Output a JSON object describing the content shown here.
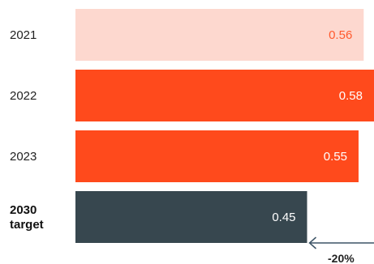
{
  "chart_data": {
    "type": "bar",
    "orientation": "horizontal",
    "categories": [
      [
        "2021"
      ],
      [
        "2022"
      ],
      [
        "2023"
      ],
      [
        "2030",
        "target"
      ]
    ],
    "values": [
      0.56,
      0.58,
      0.55,
      0.45
    ],
    "value_labels": [
      "0.56",
      "0.58",
      "0.55",
      "0.45"
    ],
    "bar_colors": [
      "#fdd8cf",
      "#ff4a1c",
      "#ff4a1c",
      "#37474f"
    ],
    "value_label_colors": [
      "#ff5a2e",
      "#ffffff",
      "#ffffff",
      "#ffffff"
    ],
    "bold_categories": [
      false,
      false,
      false,
      true
    ],
    "annotation": {
      "text": "-20%",
      "arrow_color": "#3d5466"
    },
    "xlim": [
      0,
      0.58
    ],
    "title": "",
    "xlabel": "",
    "ylabel": ""
  }
}
